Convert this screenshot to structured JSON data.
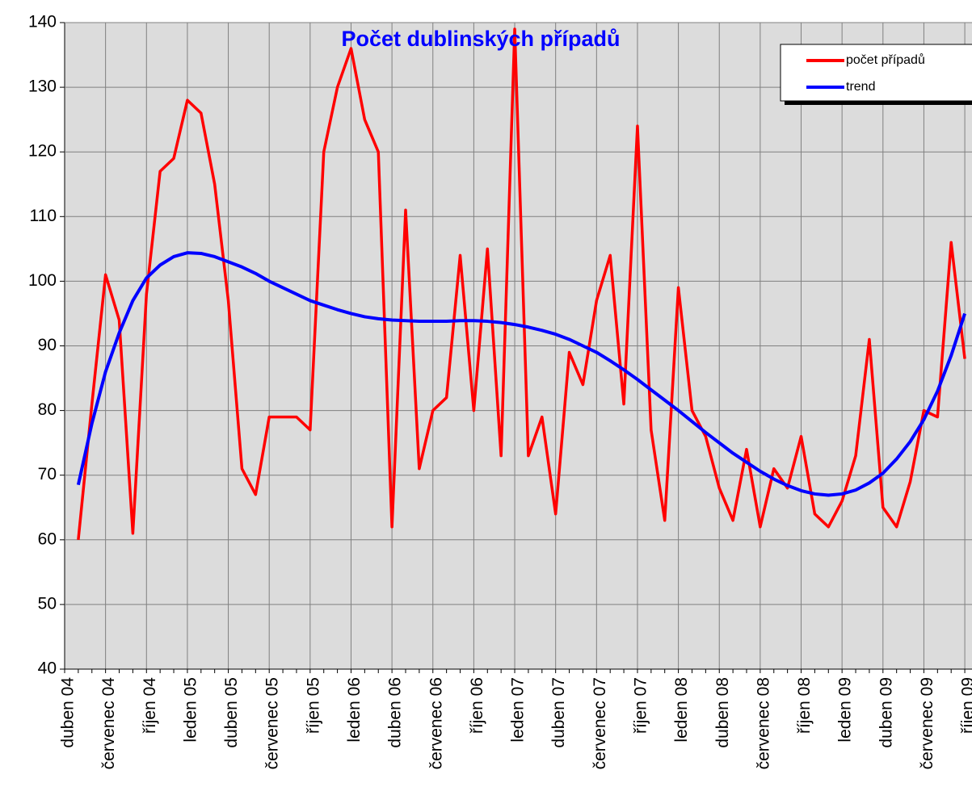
{
  "chart_data": {
    "type": "line",
    "title": "Počet dublinských případů",
    "categories": [
      "duben 04",
      null,
      null,
      "červenec 04",
      null,
      null,
      "říjen 04",
      null,
      null,
      "leden 05",
      null,
      null,
      "duben 05",
      null,
      null,
      "červenec 05",
      null,
      null,
      "říjen 05",
      null,
      null,
      "leden 06",
      null,
      null,
      "duben 06",
      null,
      null,
      "červenec 06",
      null,
      null,
      "říjen 06",
      null,
      null,
      "leden 07",
      null,
      null,
      "duben 07",
      null,
      null,
      "červenec 07",
      null,
      null,
      "říjen 07",
      null,
      null,
      "leden 08",
      null,
      null,
      "duben 08",
      null,
      null,
      "červenec 08",
      null,
      null,
      "říjen 08",
      null,
      null,
      "leden 09",
      null,
      null,
      "duben 09",
      null,
      null,
      "červenec 09",
      null,
      null,
      "říjen 09"
    ],
    "series": [
      {
        "name": "počet případů",
        "color": "#ff0000",
        "values": [
          null,
          60,
          81,
          101,
          94,
          61,
          98,
          117,
          119,
          128,
          126,
          115,
          97,
          71,
          67,
          79,
          79,
          79,
          77,
          120,
          130,
          136,
          125,
          120,
          62,
          111,
          71,
          80,
          82,
          104,
          80,
          105,
          73,
          139,
          73,
          79,
          64,
          89,
          84,
          97,
          104,
          81,
          124,
          77,
          63,
          99,
          80,
          76,
          68,
          63,
          74,
          62,
          71,
          68,
          76,
          64,
          62,
          66,
          73,
          91,
          65,
          62,
          69,
          80,
          79,
          106,
          88
        ]
      },
      {
        "name": "trend",
        "color": "#0000ff",
        "values": [
          null,
          68.5,
          78,
          86,
          92,
          97,
          100.5,
          102.5,
          103.8,
          104.4,
          104.3,
          103.8,
          103,
          102.2,
          101.2,
          100,
          99,
          98,
          97,
          96.3,
          95.6,
          95,
          94.5,
          94.2,
          94,
          93.9,
          93.8,
          93.8,
          93.8,
          93.9,
          93.9,
          93.8,
          93.6,
          93.3,
          92.9,
          92.4,
          91.8,
          91,
          90,
          89,
          87.7,
          86.3,
          84.8,
          83.2,
          81.6,
          80,
          78.3,
          76.6,
          75,
          73.4,
          72,
          70.6,
          69.4,
          68.4,
          67.6,
          67.1,
          66.9,
          67.1,
          67.7,
          68.8,
          70.3,
          72.5,
          75.2,
          78.6,
          83,
          88.5,
          95
        ]
      }
    ],
    "ylim": [
      40,
      140
    ],
    "yticks": [
      40,
      50,
      60,
      70,
      80,
      90,
      100,
      110,
      120,
      130,
      140
    ],
    "grid": true,
    "legend": "top-right"
  }
}
